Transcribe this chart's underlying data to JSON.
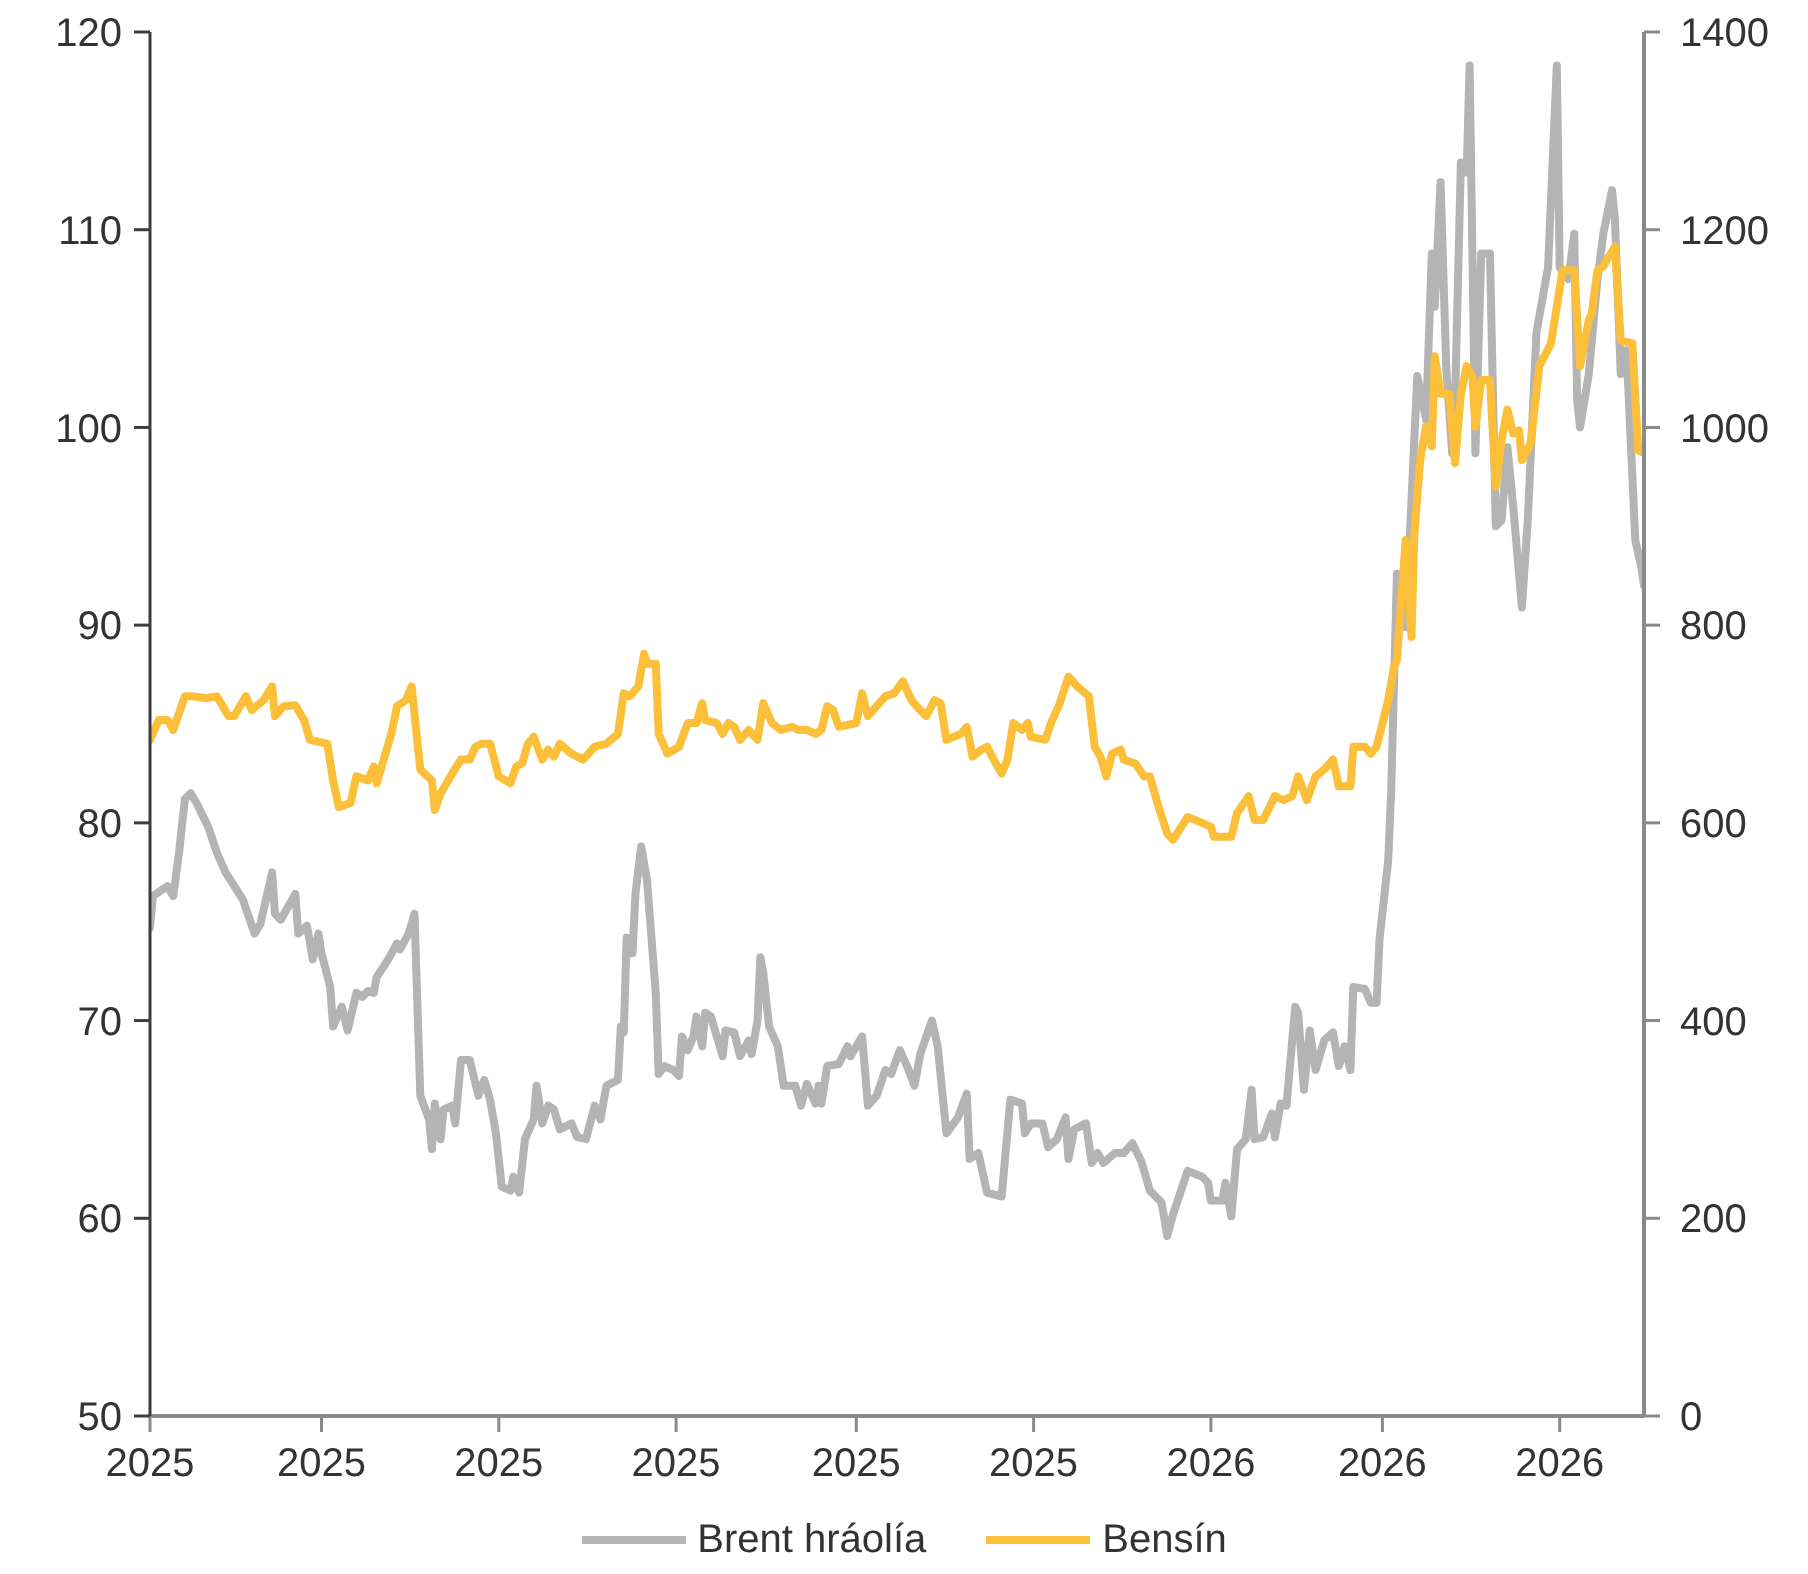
{
  "chart_data": {
    "type": "line",
    "xlim": [
      "2025-01-01",
      "2026-05-30"
    ],
    "xticks": [
      {
        "value": "2025-01-01",
        "label": "2025"
      },
      {
        "value": "2025-03-01",
        "label": "2025"
      },
      {
        "value": "2025-05-01",
        "label": "2025"
      },
      {
        "value": "2025-07-01",
        "label": "2025"
      },
      {
        "value": "2025-09-01",
        "label": "2025"
      },
      {
        "value": "2025-11-01",
        "label": "2025"
      },
      {
        "value": "2026-01-01",
        "label": "2026"
      },
      {
        "value": "2026-03-01",
        "label": "2026"
      },
      {
        "value": "2026-05-01",
        "label": "2026"
      }
    ],
    "ylim": [
      50,
      120
    ],
    "yticks": [
      50,
      60,
      70,
      80,
      90,
      100,
      110,
      120
    ],
    "y2lim": [
      0,
      1400
    ],
    "y2ticks": [
      0,
      200,
      400,
      600,
      800,
      1000,
      1200,
      1400
    ],
    "legend": "bottom",
    "line_style": "solid",
    "series": [
      {
        "name": "Brent hráolía",
        "color": "#b4b4b4",
        "x": [
          "2025-01-01",
          "2025-01-02",
          "2025-01-07",
          "2025-01-09",
          "2025-01-11",
          "2025-01-13",
          "2025-01-15",
          "2025-01-17",
          "2025-01-21",
          "2025-01-24",
          "2025-01-27",
          "2025-01-30",
          "2025-02-02",
          "2025-02-06",
          "2025-02-08",
          "2025-02-12",
          "2025-02-13",
          "2025-02-15",
          "2025-02-20",
          "2025-02-21",
          "2025-02-24",
          "2025-02-26",
          "2025-02-28",
          "2025-03-01",
          "2025-03-04",
          "2025-03-05",
          "2025-03-08",
          "2025-03-10",
          "2025-03-13",
          "2025-03-15",
          "2025-03-17",
          "2025-03-19",
          "2025-03-20",
          "2025-03-24",
          "2025-03-27",
          "2025-03-28",
          "2025-03-31",
          "2025-04-02",
          "2025-04-04",
          "2025-04-07",
          "2025-04-08",
          "2025-04-09",
          "2025-04-11",
          "2025-04-12",
          "2025-04-15",
          "2025-04-16",
          "2025-04-18",
          "2025-04-21",
          "2025-04-24",
          "2025-04-26",
          "2025-04-28",
          "2025-04-30",
          "2025-05-02",
          "2025-05-05",
          "2025-05-06",
          "2025-05-08",
          "2025-05-10",
          "2025-05-13",
          "2025-05-14",
          "2025-05-16",
          "2025-05-18",
          "2025-05-20",
          "2025-05-22",
          "2025-05-26",
          "2025-05-28",
          "2025-05-31",
          "2025-06-03",
          "2025-06-05",
          "2025-06-07",
          "2025-06-11",
          "2025-06-12",
          "2025-06-13",
          "2025-06-14",
          "2025-06-16",
          "2025-06-17",
          "2025-06-19",
          "2025-06-21",
          "2025-06-24",
          "2025-06-25",
          "2025-06-27",
          "2025-06-30",
          "2025-07-02",
          "2025-07-03",
          "2025-07-05",
          "2025-07-07",
          "2025-07-08",
          "2025-07-10",
          "2025-07-11",
          "2025-07-13",
          "2025-07-17",
          "2025-07-18",
          "2025-07-21",
          "2025-07-23",
          "2025-07-26",
          "2025-07-27",
          "2025-07-29",
          "2025-07-30",
          "2025-07-31",
          "2025-08-02",
          "2025-08-05",
          "2025-08-07",
          "2025-08-11",
          "2025-08-13",
          "2025-08-15",
          "2025-08-18",
          "2025-08-19",
          "2025-08-20",
          "2025-08-22",
          "2025-08-26",
          "2025-08-29",
          "2025-08-30",
          "2025-09-03",
          "2025-09-05",
          "2025-09-08",
          "2025-09-11",
          "2025-09-13",
          "2025-09-16",
          "2025-09-19",
          "2025-09-21",
          "2025-09-23",
          "2025-09-27",
          "2025-09-29",
          "2025-10-02",
          "2025-10-06",
          "2025-10-09",
          "2025-10-10",
          "2025-10-13",
          "2025-10-16",
          "2025-10-21",
          "2025-10-24",
          "2025-10-28",
          "2025-10-29",
          "2025-10-31",
          "2025-11-04",
          "2025-11-06",
          "2025-11-09",
          "2025-11-12",
          "2025-11-13",
          "2025-11-15",
          "2025-11-19",
          "2025-11-21",
          "2025-11-23",
          "2025-11-25",
          "2025-11-29",
          "2025-12-02",
          "2025-12-05",
          "2025-12-08",
          "2025-12-11",
          "2025-12-15",
          "2025-12-17",
          "2025-12-19",
          "2025-12-24",
          "2025-12-29",
          "2025-12-31",
          "2026-01-01",
          "2026-01-05",
          "2026-01-06",
          "2026-01-08",
          "2026-01-10",
          "2026-01-13",
          "2026-01-15",
          "2026-01-16",
          "2026-01-19",
          "2026-01-22",
          "2026-01-23",
          "2026-01-25",
          "2026-01-27",
          "2026-01-30",
          "2026-01-31",
          "2026-02-02",
          "2026-02-04",
          "2026-02-06",
          "2026-02-09",
          "2026-02-12",
          "2026-02-14",
          "2026-02-16",
          "2026-02-18",
          "2026-02-19",
          "2026-02-23",
          "2026-02-25",
          "2026-02-27",
          "2026-02-28",
          "2026-03-03",
          "2026-03-04",
          "2026-03-06",
          "2026-03-09",
          "2026-03-11",
          "2026-03-13",
          "2026-03-16",
          "2026-03-18",
          "2026-03-19",
          "2026-03-21",
          "2026-03-23",
          "2026-03-25",
          "2026-03-26",
          "2026-03-28",
          "2026-03-30",
          "2026-03-31",
          "2026-04-02",
          "2026-04-04",
          "2026-04-07",
          "2026-04-09",
          "2026-04-11",
          "2026-04-13",
          "2026-04-15",
          "2026-04-18",
          "2026-04-20",
          "2026-04-23",
          "2026-04-27",
          "2026-04-30",
          "2026-05-01",
          "2026-05-04",
          "2026-05-06",
          "2026-05-07",
          "2026-05-08",
          "2026-05-11",
          "2026-05-14",
          "2026-05-16",
          "2026-05-19",
          "2026-05-20",
          "2026-05-22",
          "2026-05-24",
          "2026-05-27",
          "2026-05-29",
          "2026-05-30"
        ],
        "values": [
          74.7,
          76.3,
          76.8,
          76.3,
          78.5,
          81.2,
          81.5,
          81.0,
          79.8,
          78.5,
          77.5,
          76.8,
          76.1,
          74.4,
          74.9,
          77.5,
          75.4,
          75.1,
          76.4,
          74.4,
          74.8,
          73.1,
          74.4,
          73.4,
          71.7,
          69.7,
          70.7,
          69.5,
          71.4,
          71.2,
          71.5,
          71.4,
          72.2,
          73.1,
          73.9,
          73.6,
          74.4,
          75.4,
          66.2,
          65.0,
          63.5,
          65.8,
          64.0,
          65.5,
          65.7,
          64.8,
          68.0,
          68.0,
          66.2,
          67.0,
          66.0,
          64.3,
          61.6,
          61.4,
          62.1,
          61.3,
          64.0,
          65.0,
          66.7,
          64.8,
          65.7,
          65.5,
          64.5,
          64.8,
          64.1,
          64.0,
          65.7,
          65.0,
          66.7,
          67.0,
          69.7,
          69.4,
          74.2,
          73.4,
          76.4,
          78.8,
          77.1,
          71.4,
          67.3,
          67.7,
          67.5,
          67.2,
          69.2,
          68.5,
          69.2,
          70.2,
          68.7,
          70.4,
          70.2,
          68.2,
          69.5,
          69.4,
          68.2,
          69.0,
          68.3,
          70.0,
          73.2,
          72.4,
          69.7,
          68.7,
          66.7,
          66.7,
          65.7,
          66.8,
          65.8,
          66.7,
          65.8,
          67.7,
          67.8,
          68.7,
          68.2,
          69.2,
          65.7,
          66.2,
          67.5,
          67.3,
          68.5,
          67.5,
          66.7,
          68.3,
          70.0,
          68.7,
          64.3,
          65.1,
          66.3,
          63.0,
          63.3,
          61.3,
          61.1,
          66.0,
          65.8,
          64.3,
          64.8,
          64.8,
          63.6,
          64.0,
          65.1,
          63.0,
          64.5,
          64.8,
          62.8,
          63.3,
          62.8,
          63.3,
          63.3,
          63.8,
          62.9,
          61.4,
          60.8,
          59.1,
          60.2,
          62.4,
          62.1,
          61.8,
          60.9,
          60.9,
          61.8,
          60.1,
          63.5,
          64.0,
          66.5,
          64.0,
          64.1,
          65.3,
          64.1,
          65.8,
          65.7,
          70.7,
          70.4,
          66.5,
          69.5,
          67.5,
          69.0,
          69.4,
          67.7,
          68.7,
          67.5,
          71.7,
          71.6,
          70.9,
          70.9,
          74.1,
          78.1,
          81.5,
          92.6,
          89.9,
          96.3,
          102.6,
          100.4,
          108.8,
          106.1,
          112.4,
          102.9,
          98.7,
          101.4,
          113.4,
          112.9,
          118.3,
          98.7,
          108.8,
          108.8,
          95.0,
          95.3,
          99.0,
          96.0,
          90.9,
          95.3,
          104.8,
          108.1,
          118.3,
          108.1,
          107.5,
          109.8,
          101.4,
          100.0,
          102.7,
          107.5,
          109.8,
          112.0,
          110.5,
          102.7,
          103.9,
          94.3,
          93.0,
          92.0
        ]
      },
      {
        "name": "Bensín",
        "color": "#fbbf3a",
        "axis": "y2",
        "x": [
          "2025-01-01",
          "2025-01-04",
          "2025-01-07",
          "2025-01-09",
          "2025-01-13",
          "2025-01-16",
          "2025-01-20",
          "2025-01-24",
          "2025-01-28",
          "2025-01-30",
          "2025-02-03",
          "2025-02-05",
          "2025-02-09",
          "2025-02-12",
          "2025-02-13",
          "2025-02-16",
          "2025-02-20",
          "2025-02-23",
          "2025-02-25",
          "2025-03-03",
          "2025-03-05",
          "2025-03-07",
          "2025-03-11",
          "2025-03-13",
          "2025-03-17",
          "2025-03-19",
          "2025-03-20",
          "2025-03-23",
          "2025-03-25",
          "2025-03-27",
          "2025-03-30",
          "2025-04-01",
          "2025-04-04",
          "2025-04-08",
          "2025-04-09",
          "2025-04-11",
          "2025-04-15",
          "2025-04-18",
          "2025-04-21",
          "2025-04-23",
          "2025-04-25",
          "2025-04-28",
          "2025-05-01",
          "2025-05-05",
          "2025-05-07",
          "2025-05-09",
          "2025-05-11",
          "2025-05-13",
          "2025-05-16",
          "2025-05-18",
          "2025-05-20",
          "2025-05-22",
          "2025-05-26",
          "2025-05-30",
          "2025-06-03",
          "2025-06-07",
          "2025-06-11",
          "2025-06-13",
          "2025-06-15",
          "2025-06-18",
          "2025-06-20",
          "2025-06-21",
          "2025-06-24",
          "2025-06-25",
          "2025-06-28",
          "2025-07-02",
          "2025-07-05",
          "2025-07-08",
          "2025-07-10",
          "2025-07-11",
          "2025-07-15",
          "2025-07-17",
          "2025-07-19",
          "2025-07-21",
          "2025-07-23",
          "2025-07-26",
          "2025-07-29",
          "2025-07-31",
          "2025-08-03",
          "2025-08-06",
          "2025-08-10",
          "2025-08-12",
          "2025-08-15",
          "2025-08-18",
          "2025-08-20",
          "2025-08-22",
          "2025-08-24",
          "2025-08-26",
          "2025-09-01",
          "2025-09-03",
          "2025-09-05",
          "2025-09-08",
          "2025-09-11",
          "2025-09-14",
          "2025-09-17",
          "2025-09-20",
          "2025-09-23",
          "2025-09-25",
          "2025-09-28",
          "2025-09-30",
          "2025-10-02",
          "2025-10-07",
          "2025-10-09",
          "2025-10-11",
          "2025-10-14",
          "2025-10-16",
          "2025-10-19",
          "2025-10-21",
          "2025-10-23",
          "2025-10-25",
          "2025-10-28",
          "2025-10-30",
          "2025-10-31",
          "2025-11-05",
          "2025-11-07",
          "2025-11-10",
          "2025-11-13",
          "2025-11-16",
          "2025-11-20",
          "2025-11-22",
          "2025-11-24",
          "2025-11-26",
          "2025-11-28",
          "2025-12-01",
          "2025-12-02",
          "2025-12-06",
          "2025-12-09",
          "2025-12-11",
          "2025-12-14",
          "2025-12-17",
          "2025-12-19",
          "2025-12-24",
          "2025-12-29",
          "2026-01-01",
          "2026-01-02",
          "2026-01-08",
          "2026-01-10",
          "2026-01-14",
          "2026-01-16",
          "2026-01-19",
          "2026-01-23",
          "2026-01-26",
          "2026-01-29",
          "2026-01-31",
          "2026-02-03",
          "2026-02-06",
          "2026-02-09",
          "2026-02-12",
          "2026-02-14",
          "2026-02-18",
          "2026-02-19",
          "2026-02-23",
          "2026-02-25",
          "2026-02-27",
          "2026-03-03",
          "2026-03-05",
          "2026-03-06",
          "2026-03-09",
          "2026-03-11",
          "2026-03-12",
          "2026-03-14",
          "2026-03-16",
          "2026-03-18",
          "2026-03-19",
          "2026-03-21",
          "2026-03-24",
          "2026-03-26",
          "2026-03-28",
          "2026-03-30",
          "2026-04-01",
          "2026-04-02",
          "2026-04-04",
          "2026-04-07",
          "2026-04-09",
          "2026-04-11",
          "2026-04-13",
          "2026-04-15",
          "2026-04-17",
          "2026-04-18",
          "2026-04-21",
          "2026-04-24",
          "2026-04-28",
          "2026-05-02",
          "2026-05-06",
          "2026-05-08",
          "2026-05-11",
          "2026-05-12",
          "2026-05-14",
          "2026-05-16",
          "2026-05-20",
          "2026-05-22",
          "2026-05-26",
          "2026-05-28",
          "2026-05-30"
        ],
        "values": [
          684,
          704,
          704,
          694,
          728,
          728,
          726,
          728,
          708,
          708,
          728,
          714,
          724,
          738,
          708,
          718,
          719,
          704,
          684,
          680,
          643,
          616,
          620,
          647,
          643,
          657,
          640,
          670,
          690,
          718,
          724,
          738,
          654,
          643,
          613,
          630,
          650,
          664,
          664,
          677,
          680,
          680,
          647,
          640,
          657,
          660,
          680,
          687,
          664,
          674,
          667,
          680,
          670,
          664,
          677,
          680,
          690,
          731,
          728,
          738,
          771,
          761,
          761,
          690,
          670,
          677,
          701,
          701,
          721,
          704,
          701,
          690,
          701,
          697,
          684,
          694,
          684,
          721,
          701,
          694,
          697,
          694,
          694,
          690,
          694,
          718,
          714,
          697,
          701,
          731,
          708,
          718,
          728,
          731,
          743,
          724,
          714,
          708,
          724,
          721,
          684,
          690,
          697,
          667,
          674,
          677,
          660,
          650,
          664,
          701,
          694,
          701,
          687,
          684,
          701,
          721,
          748,
          738,
          728,
          677,
          667,
          647,
          670,
          674,
          664,
          660,
          647,
          647,
          616,
          589,
          583,
          606,
          600,
          596,
          586,
          586,
          610,
          627,
          603,
          603,
          627,
          623,
          627,
          647,
          623,
          647,
          654,
          664,
          637,
          637,
          677,
          677,
          670,
          677,
          724,
          758,
          765,
          886,
          788,
          893,
          967,
          1001,
          981,
          1072,
          1034,
          1034,
          964,
          1034,
          1062,
          1051,
          1001,
          1048,
          1048,
          940,
          987,
          1018,
          994,
          997,
          967,
          984,
          1062,
          1085,
          1159,
          1159,
          1062,
          1109,
          1115,
          1159,
          1163,
          1183,
          1088,
          1085,
          977,
          974
        ]
      }
    ]
  }
}
